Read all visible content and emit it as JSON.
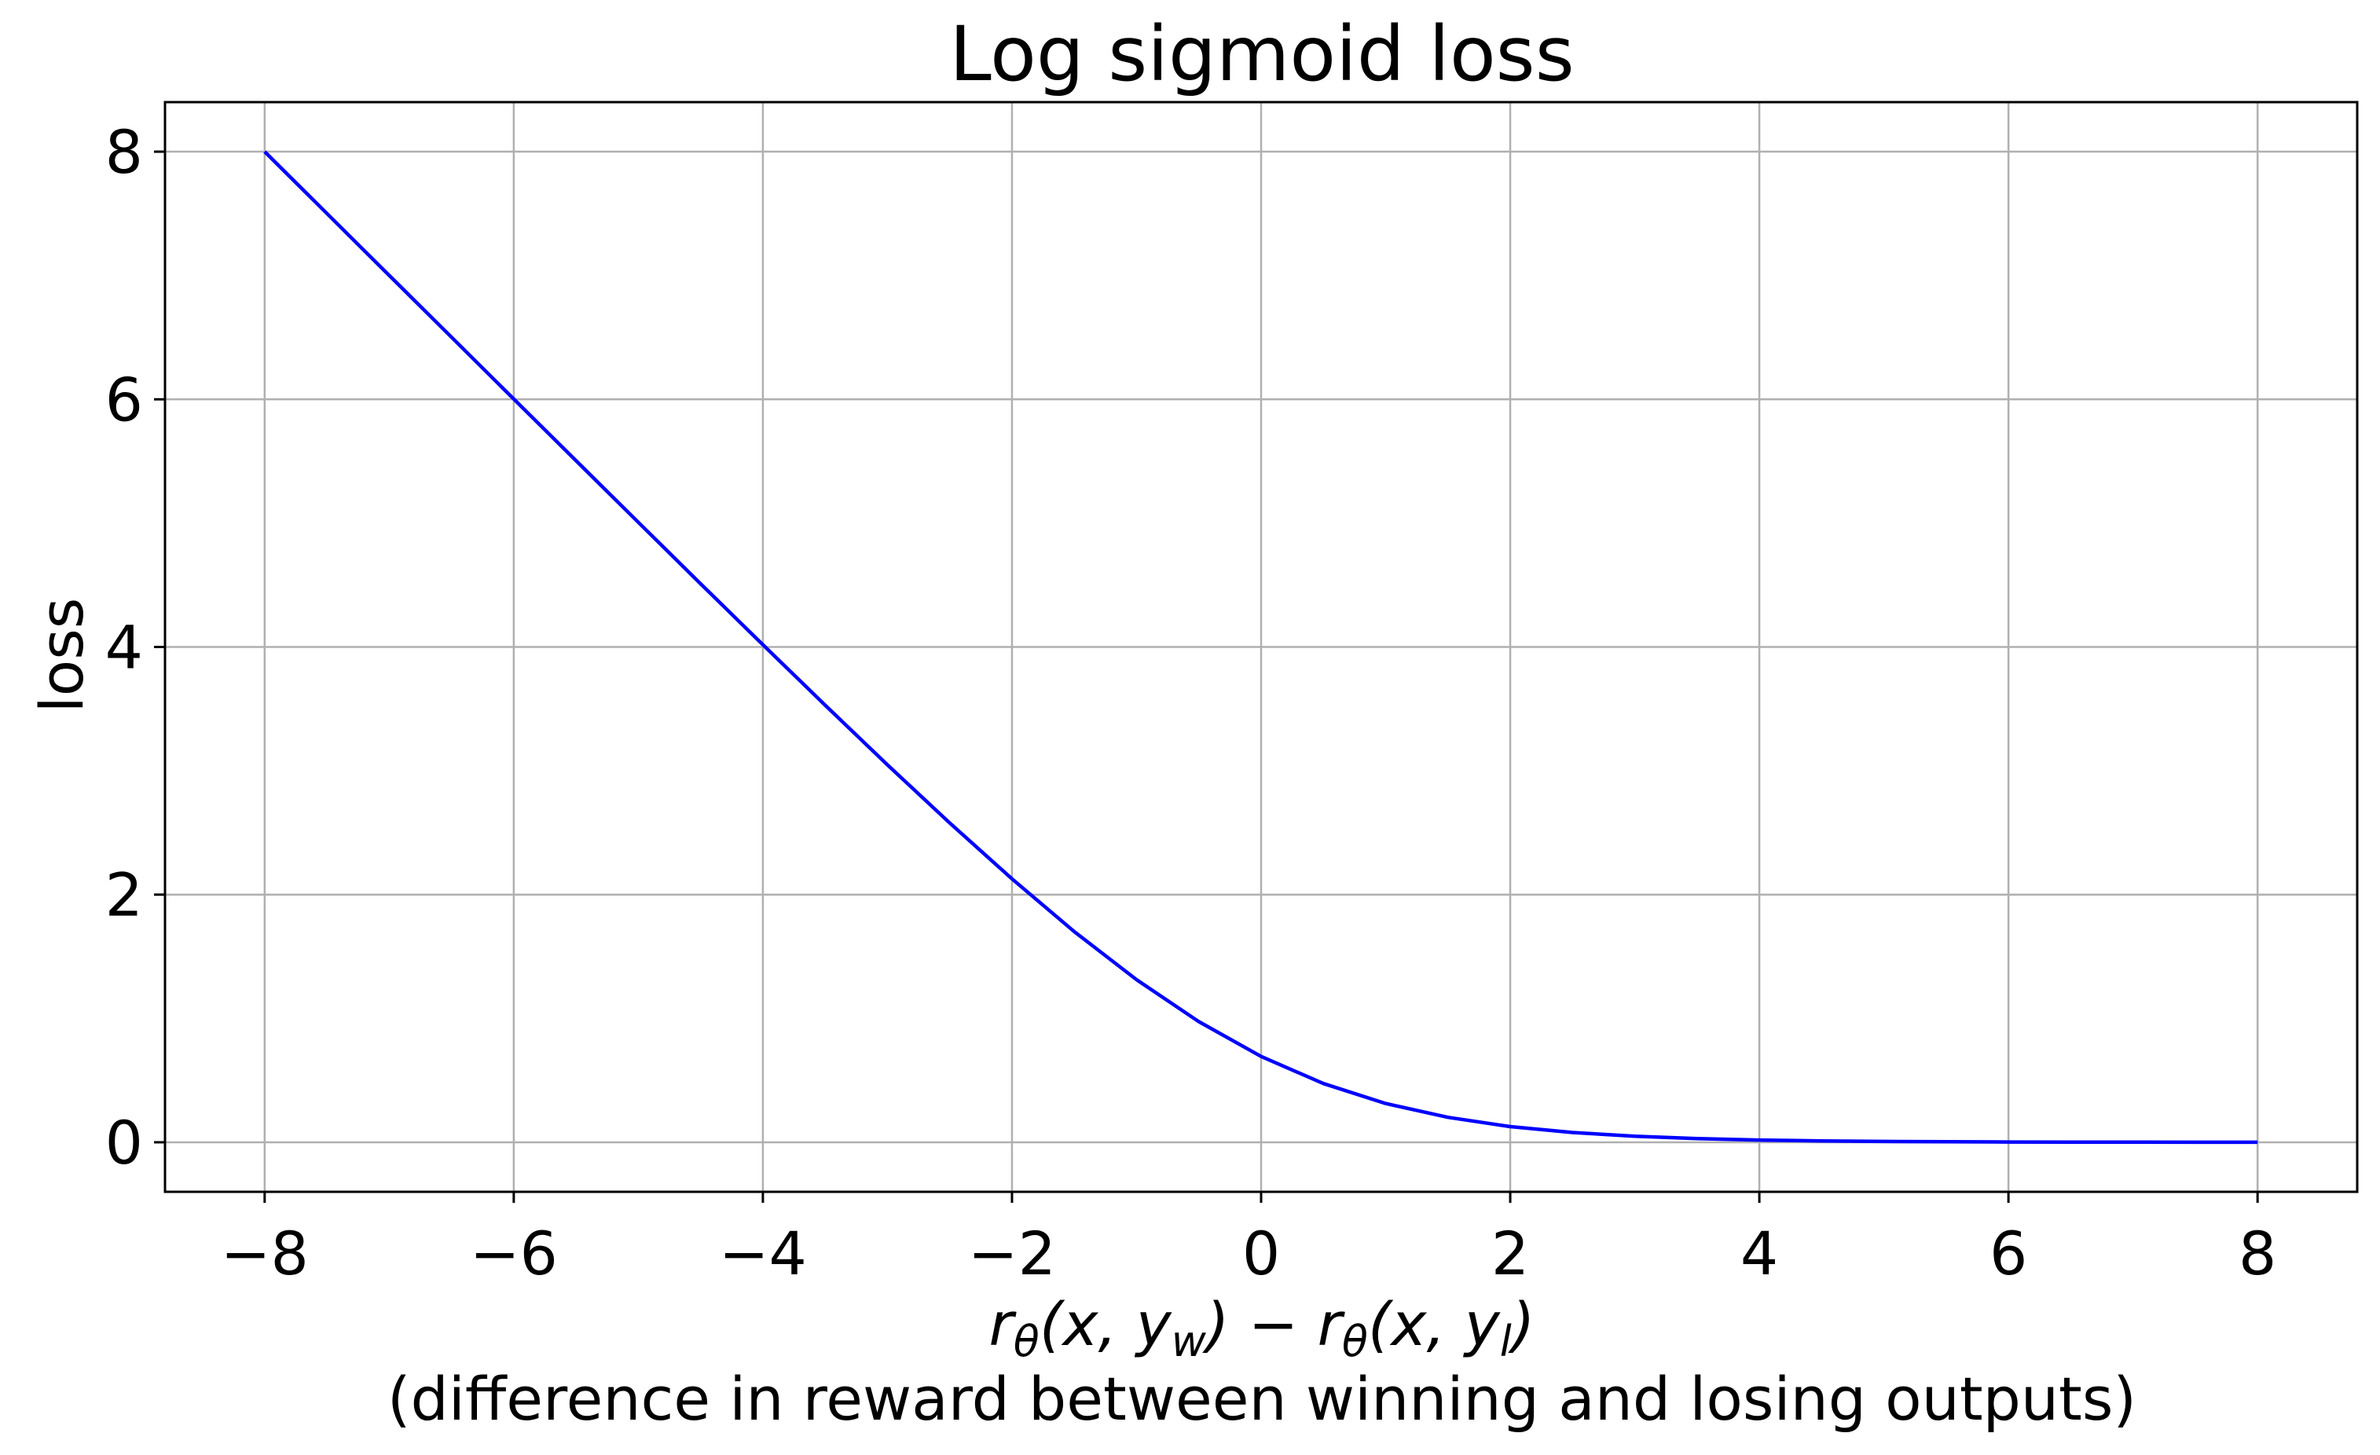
{
  "chart_data": {
    "type": "line",
    "title": "Log sigmoid loss",
    "xlabel": {
      "math": [
        "r",
        "θ",
        "(x, y",
        "w",
        ") − r",
        "θ",
        "(x, y",
        "l",
        ")"
      ],
      "line2": "(difference in reward between winning and losing outputs)"
    },
    "ylabel": "loss",
    "xlim": [
      -8.8,
      8.8
    ],
    "ylim": [
      -0.4,
      8.4
    ],
    "xticks": [
      -8,
      -6,
      -4,
      -2,
      0,
      2,
      4,
      6,
      8
    ],
    "xtick_labels": [
      "−8",
      "−6",
      "−4",
      "−2",
      "0",
      "2",
      "4",
      "6",
      "8"
    ],
    "yticks": [
      0,
      2,
      4,
      6,
      8
    ],
    "ytick_labels": [
      "0",
      "2",
      "4",
      "6",
      "8"
    ],
    "grid": true,
    "series": [
      {
        "color": "#0000ff",
        "x": [
          -8,
          -7.5,
          -7,
          -6.5,
          -6,
          -5.5,
          -5,
          -4.5,
          -4,
          -3.5,
          -3,
          -2.5,
          -2,
          -1.5,
          -1,
          -0.5,
          0,
          0.5,
          1,
          1.5,
          2,
          2.5,
          3,
          3.5,
          4,
          4.5,
          5,
          5.5,
          6,
          6.5,
          7,
          7.5,
          8
        ],
        "y": [
          8.0003,
          7.5006,
          7.0009,
          6.5015,
          6.0025,
          5.5041,
          5.0067,
          4.511,
          4.0181,
          3.5297,
          3.0486,
          2.5789,
          2.1269,
          1.7014,
          1.3133,
          0.9741,
          0.6931,
          0.4741,
          0.3133,
          0.2014,
          0.1269,
          0.0789,
          0.0486,
          0.0297,
          0.0181,
          0.011,
          0.0067,
          0.0041,
          0.0025,
          0.0015,
          0.0009,
          0.0006,
          0.0003
        ]
      }
    ]
  }
}
